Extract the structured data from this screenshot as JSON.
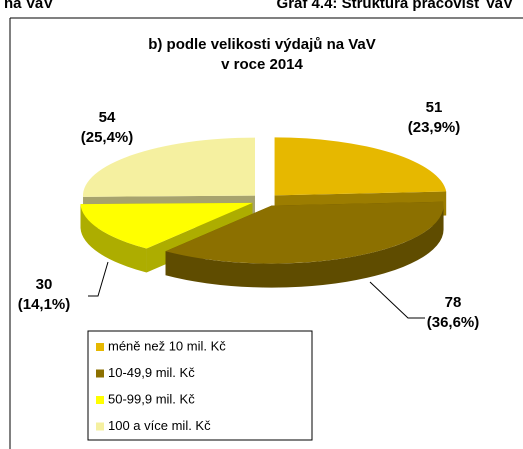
{
  "header": {
    "left": "na VaV",
    "right": "Graf 4.4: Struktura pracovišť VaV"
  },
  "chart_data": {
    "type": "pie3d",
    "title": [
      "b) podle velikosti výdajů na VaV",
      "v roce 2014"
    ],
    "categories": [
      "méně než 10 mil. Kč",
      "10-49,9 mil. Kč",
      "50-99,9 mil. Kč",
      "100 a více mil. Kč"
    ],
    "values": [
      51,
      78,
      30,
      54
    ],
    "percent_labels": [
      "(23,9%)",
      "(36,6%)",
      "(14,1%)",
      "(25,4%)"
    ],
    "colors": [
      "#e6b800",
      "#8c7000",
      "#ffff00",
      "#f5f0a0"
    ],
    "legend": "bottom-left"
  }
}
